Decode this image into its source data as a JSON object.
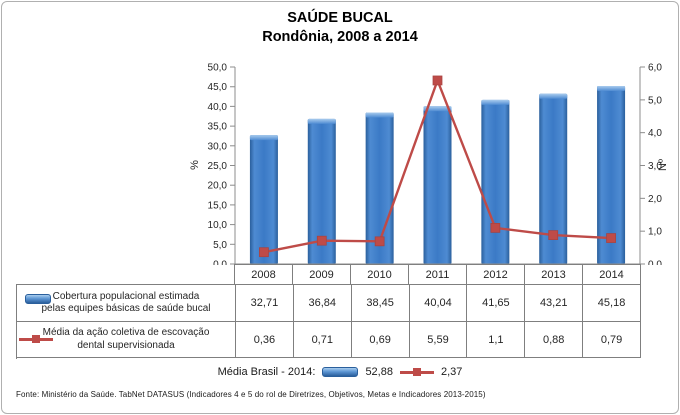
{
  "title": {
    "line1": "SAÚDE BUCAL",
    "line2": "Rondônia, 2008 a 2014"
  },
  "chart_data": {
    "type": "bar",
    "subtype": "combo bar + line, dual axis",
    "title": "SAÚDE BUCAL",
    "subtitle": "Rondônia, 2008 a 2014",
    "categories": [
      "2008",
      "2009",
      "2010",
      "2011",
      "2012",
      "2013",
      "2014"
    ],
    "series": [
      {
        "name": "Cobertura populacional estimada pelas equipes básicas de saúde bucal",
        "type": "bar",
        "axis": "left",
        "values": [
          32.71,
          36.84,
          38.45,
          40.04,
          41.65,
          43.21,
          45.18
        ]
      },
      {
        "name": "Média da ação coletiva de escovação dental supervisionada",
        "type": "line",
        "axis": "right",
        "values": [
          0.36,
          0.71,
          0.69,
          5.59,
          1.1,
          0.88,
          0.79
        ]
      }
    ],
    "left_axis": {
      "label": "%",
      "min": 0,
      "max": 50,
      "step": 5,
      "tick_labels": [
        "0,0",
        "5,0",
        "10,0",
        "15,0",
        "20,0",
        "25,0",
        "30,0",
        "35,0",
        "40,0",
        "45,0",
        "50,0"
      ]
    },
    "right_axis": {
      "label": "Nº",
      "min": 0,
      "max": 6,
      "step": 1,
      "tick_labels": [
        "0,0",
        "1,0",
        "2,0",
        "3,0",
        "4,0",
        "5,0",
        "6,0"
      ]
    },
    "grid": false,
    "legend_position": "table below chart"
  },
  "table": {
    "years": [
      "2008",
      "2009",
      "2010",
      "2011",
      "2012",
      "2013",
      "2014"
    ],
    "rows": [
      {
        "icon": "bar-legend-icon",
        "label_line1": "Cobertura populacional estimada",
        "label_line2": "pelas equipes básicas de saúde bucal",
        "values": [
          "32,71",
          "36,84",
          "38,45",
          "40,04",
          "41,65",
          "43,21",
          "45,18"
        ]
      },
      {
        "icon": "line-legend-icon",
        "label_line1": "Média da ação coletiva de escovação",
        "label_line2": "dental supervisionada",
        "values": [
          "0,36",
          "0,71",
          "0,69",
          "5,59",
          "1,1",
          "0,88",
          "0,79"
        ]
      }
    ]
  },
  "media_brasil": {
    "label": "Média Brasil - 2014:",
    "bar_value": "52,88",
    "line_value": "2,37"
  },
  "fonte": "Fonte: Ministério da Saúde. TabNet DATASUS (Indicadores 4 e 5 do rol de Diretrizes, Objetivos, Metas e Indicadores 2013-2015)",
  "colors": {
    "bar_fill": "#3b7ac6",
    "bar_edge": "#2a5f9c",
    "bar_mid": "#4e8bd2",
    "bar_highlight": "#a9ccee",
    "line": "#be4b48",
    "line_marker_stroke": "#a84341",
    "axis": "#8c8c8c",
    "tick_text": "#262626",
    "table_border": "#7f7f7f",
    "frame_border": "#b0b0b0"
  }
}
